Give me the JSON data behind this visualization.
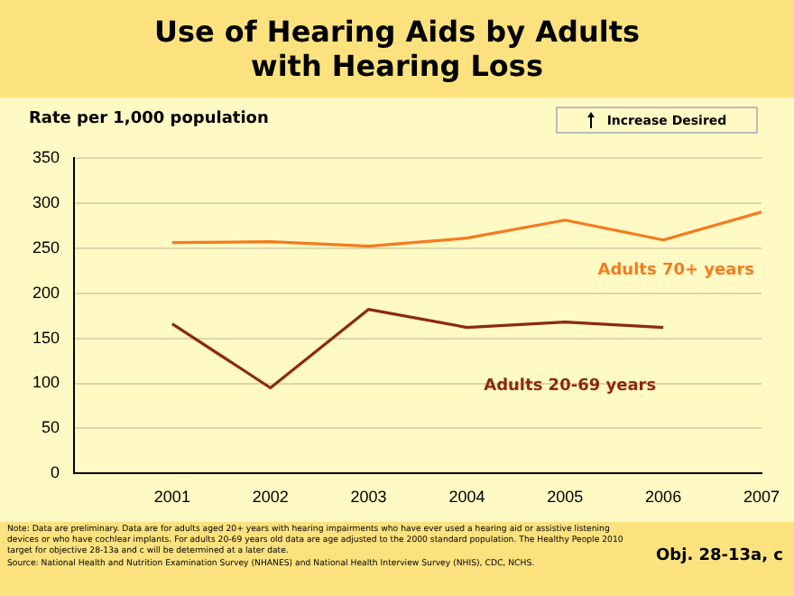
{
  "chart_data": {
    "type": "line",
    "title": "Use of Hearing Aids by Adults with Hearing Loss",
    "ylabel": "Rate per 1,000 population",
    "x": [
      2001,
      2002,
      2003,
      2004,
      2005,
      2006,
      2007
    ],
    "xlim": [
      2000,
      2007
    ],
    "xticks": [
      2001,
      2002,
      2003,
      2004,
      2005,
      2006,
      2007
    ],
    "ylim": [
      0,
      350
    ],
    "yticks": [
      0,
      50,
      100,
      150,
      200,
      250,
      300,
      350
    ],
    "grid": "y",
    "legend": false,
    "marker": "none",
    "line_style": "solid",
    "series": [
      {
        "name": "Adults 70+ years",
        "color": "#f47b20",
        "values": [
          256,
          257,
          252,
          261,
          281,
          259,
          290
        ]
      },
      {
        "name": "Adults 20-69 years",
        "color": "#8b2a0e",
        "values": [
          166,
          95,
          182,
          162,
          168,
          162,
          null
        ]
      }
    ],
    "annotations": [
      "Increase Desired",
      "Note: Data are preliminary. Data are for adults aged 20+ years with hearing impairments who have ever used a hearing aid or assistive listening devices or who have cochlear implants. For adults 20-69 years old data are age adjusted to the 2000 standard population. The Healthy People 2010 target for objective 28-13a and c will be determined at a later date.",
      "Source: National Health and Nutrition Examination Survey (NHANES) and National Health Interview Survey (NHIS), CDC, NCHS.",
      "Obj. 28-13a, c"
    ]
  }
}
